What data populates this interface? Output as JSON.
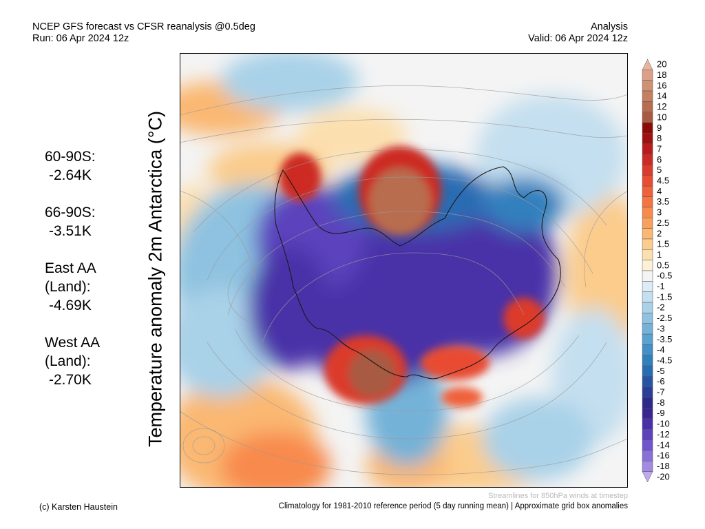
{
  "header": {
    "title": "NCEP GFS forecast vs CFSR reanalysis @0.5deg",
    "run": "Run: 06 Apr 2024 12z",
    "type": "Analysis",
    "valid": "Valid: 06 Apr 2024 12z"
  },
  "map": {
    "variable_label": "Temperature anomaly 2m Antarctica (°C)",
    "projection": "south polar stereographic",
    "overlay": "streamlines"
  },
  "stats": [
    {
      "label": "60-90S:",
      "value": "-2.64K"
    },
    {
      "label": "66-90S:",
      "value": "-3.51K"
    },
    {
      "label": "East AA (Land):",
      "value": "-4.69K"
    },
    {
      "label": "West AA (Land):",
      "value": "-2.70K"
    }
  ],
  "colorbar": {
    "labels": [
      "20",
      "18",
      "16",
      "14",
      "12",
      "10",
      "9",
      "8",
      "7",
      "6",
      "5",
      "4.5",
      "4",
      "3.5",
      "3",
      "2.5",
      "2",
      "1.5",
      "1",
      "0.5",
      "-0.5",
      "-1",
      "-1.5",
      "-2",
      "-2.5",
      "-3",
      "-3.5",
      "-4",
      "-4.5",
      "-5",
      "-6",
      "-7",
      "-8",
      "-9",
      "-10",
      "-12",
      "-14",
      "-16",
      "-18",
      "-20"
    ],
    "colors": [
      "#e8b49f",
      "#dca088",
      "#d09072",
      "#c4805f",
      "#b86d4f",
      "#a85a42",
      "#8c0a0a",
      "#a01010",
      "#b81c1c",
      "#cc2a24",
      "#dc3a2c",
      "#e84c32",
      "#f0603a",
      "#f47442",
      "#f88a4e",
      "#f9a05e",
      "#fab872",
      "#fbcc8c",
      "#fcdfae",
      "#fdf0d8",
      "#f4f4f4",
      "#dcebf6",
      "#c4dfef",
      "#a9d1e8",
      "#8ec2e0",
      "#74b2d8",
      "#5aa2cf",
      "#4290c6",
      "#3080bd",
      "#2a6cb2",
      "#2655a3",
      "#2b3f97",
      "#2e2a8a",
      "#3a2690",
      "#4a30a8",
      "#5c42bd",
      "#7056cc",
      "#8870d8",
      "#a28ae2",
      "#c0aaee"
    ]
  },
  "footer": {
    "credit": "(c) Karsten Haustein",
    "climatology": "Climatology for 1981-2010 reference period (5 day running mean) | Approximate grid box anomalies",
    "streamlines_note": "Streamlines for 850hPa winds at timestep"
  },
  "colors": {
    "background": "#f4f4f4",
    "cold_extreme": "#5c42bd",
    "warm_extreme": "#a85a42",
    "streamline": "#9a9a9a"
  }
}
